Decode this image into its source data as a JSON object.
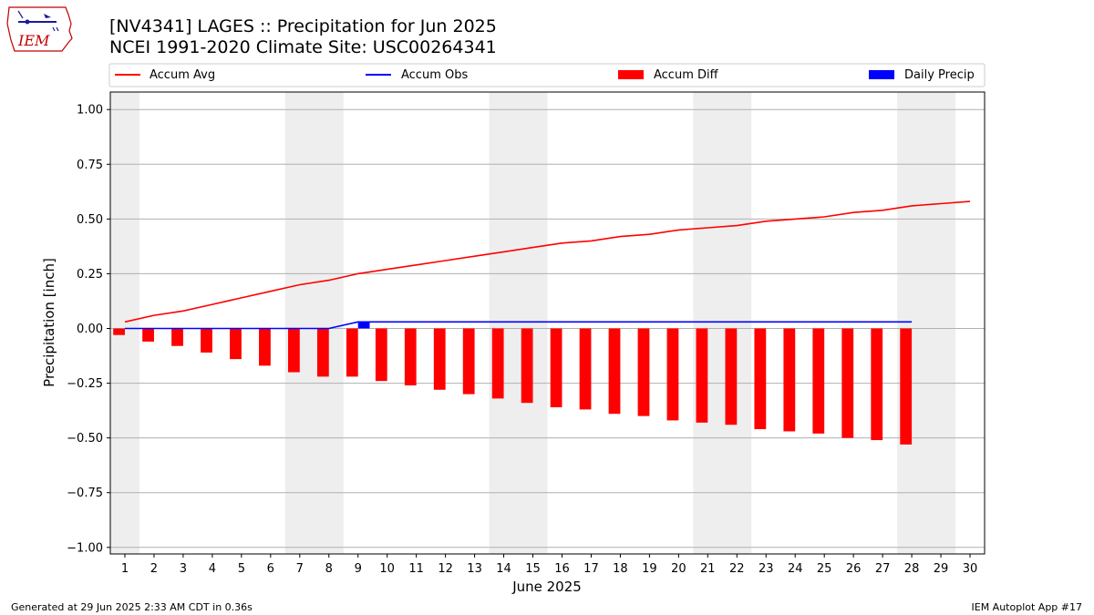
{
  "header": {
    "title_line1": "[NV4341] LAGES :: Precipitation for Jun 2025",
    "title_line2": "NCEI 1991-2020 Climate Site: USC00264341"
  },
  "logo": {
    "text": "IEM",
    "icon": "iem-state-logo"
  },
  "footer": {
    "left": "Generated at 29 Jun 2025 2:33 AM CDT in 0.36s",
    "right": "IEM Autoplot App #17"
  },
  "colors": {
    "avg": "#ff0000",
    "obs": "#0000ff",
    "diff": "#ff0000",
    "daily": "#0000ff",
    "weekend_band": "#eeeeee",
    "grid": "#b0b0b0"
  },
  "chart_data": {
    "type": "bar",
    "title": "[NV4341] LAGES :: Precipitation for Jun 2025",
    "subtitle": "NCEI 1991-2020 Climate Site: USC00264341",
    "xlabel": "June 2025",
    "ylabel": "Precipitation [inch]",
    "ylim": [
      -1.03,
      1.08
    ],
    "xlim": [
      0.5,
      30.5
    ],
    "yticks": [
      -1.0,
      -0.75,
      -0.5,
      -0.25,
      0.0,
      0.25,
      0.5,
      0.75,
      1.0
    ],
    "ytick_labels": [
      "−1.00",
      "−0.75",
      "−0.50",
      "−0.25",
      "0.00",
      "0.25",
      "0.50",
      "0.75",
      "1.00"
    ],
    "x": [
      1,
      2,
      3,
      4,
      5,
      6,
      7,
      8,
      9,
      10,
      11,
      12,
      13,
      14,
      15,
      16,
      17,
      18,
      19,
      20,
      21,
      22,
      23,
      24,
      25,
      26,
      27,
      28,
      29,
      30
    ],
    "xtick_labels": [
      "1",
      "2",
      "3",
      "4",
      "5",
      "6",
      "7",
      "8",
      "9",
      "10",
      "11",
      "12",
      "13",
      "14",
      "15",
      "16",
      "17",
      "18",
      "19",
      "20",
      "21",
      "22",
      "23",
      "24",
      "25",
      "26",
      "27",
      "28",
      "29",
      "30"
    ],
    "grid": "y",
    "legend_position": "top",
    "weekend_days": [
      [
        1
      ],
      [
        7,
        8
      ],
      [
        14,
        15
      ],
      [
        21,
        22
      ],
      [
        28,
        29
      ]
    ],
    "series": [
      {
        "name": "Accum Avg",
        "type": "line",
        "x": [
          1,
          2,
          3,
          4,
          5,
          6,
          7,
          8,
          9,
          10,
          11,
          12,
          13,
          14,
          15,
          16,
          17,
          18,
          19,
          20,
          21,
          22,
          23,
          24,
          25,
          26,
          27,
          28,
          29,
          30
        ],
        "values": [
          0.03,
          0.06,
          0.08,
          0.11,
          0.14,
          0.17,
          0.2,
          0.22,
          0.25,
          0.27,
          0.29,
          0.31,
          0.33,
          0.35,
          0.37,
          0.39,
          0.4,
          0.42,
          0.43,
          0.45,
          0.46,
          0.47,
          0.49,
          0.5,
          0.51,
          0.53,
          0.54,
          0.56,
          0.57,
          0.58
        ]
      },
      {
        "name": "Accum Obs",
        "type": "line",
        "x": [
          1,
          2,
          3,
          4,
          5,
          6,
          7,
          8,
          9,
          10,
          11,
          12,
          13,
          14,
          15,
          16,
          17,
          18,
          19,
          20,
          21,
          22,
          23,
          24,
          25,
          26,
          27,
          28
        ],
        "values": [
          0,
          0,
          0,
          0,
          0,
          0,
          0,
          0,
          0.03,
          0.03,
          0.03,
          0.03,
          0.03,
          0.03,
          0.03,
          0.03,
          0.03,
          0.03,
          0.03,
          0.03,
          0.03,
          0.03,
          0.03,
          0.03,
          0.03,
          0.03,
          0.03,
          0.03
        ]
      },
      {
        "name": "Accum Diff",
        "type": "bar",
        "x": [
          1,
          2,
          3,
          4,
          5,
          6,
          7,
          8,
          9,
          10,
          11,
          12,
          13,
          14,
          15,
          16,
          17,
          18,
          19,
          20,
          21,
          22,
          23,
          24,
          25,
          26,
          27,
          28
        ],
        "values": [
          -0.03,
          -0.06,
          -0.08,
          -0.11,
          -0.14,
          -0.17,
          -0.2,
          -0.22,
          -0.22,
          -0.24,
          -0.26,
          -0.28,
          -0.3,
          -0.32,
          -0.34,
          -0.36,
          -0.37,
          -0.39,
          -0.4,
          -0.42,
          -0.43,
          -0.44,
          -0.46,
          -0.47,
          -0.48,
          -0.5,
          -0.51,
          -0.53
        ]
      },
      {
        "name": "Daily Precip",
        "type": "bar",
        "x": [
          9
        ],
        "values": [
          0.03
        ]
      }
    ]
  }
}
